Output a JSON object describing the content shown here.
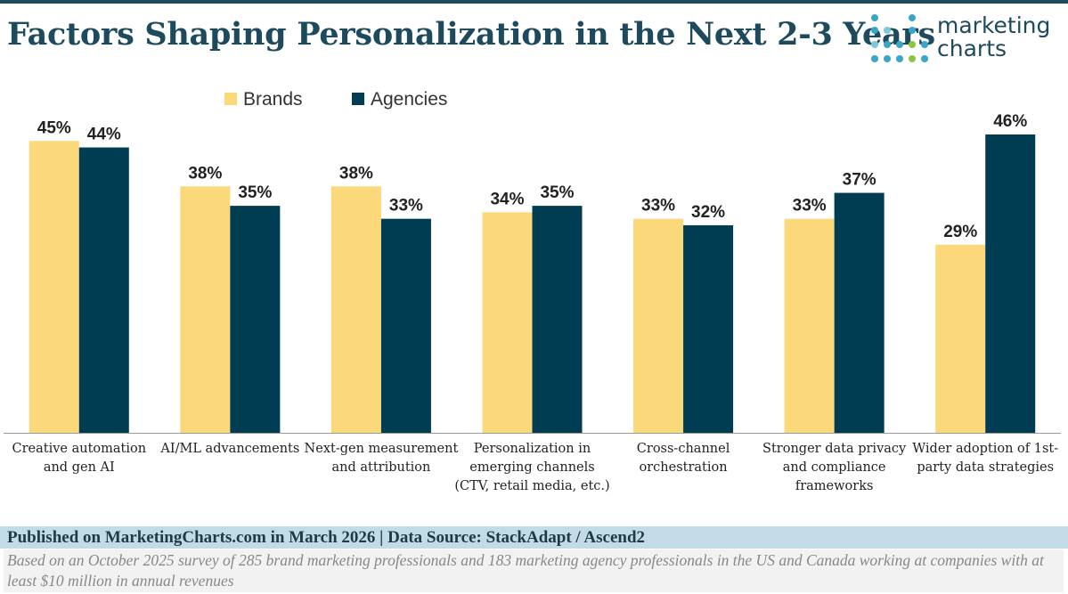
{
  "title": "Factors Shaping Personalization in the Next 2-3 Years",
  "logo": {
    "line1": "marketing",
    "line2": "charts"
  },
  "colors": {
    "brands": "#fbd97b",
    "agencies": "#003c52",
    "title": "#1d4a5c",
    "footer_bar": "#c3dbe6"
  },
  "chart_data": {
    "type": "bar",
    "title": "Factors Shaping Personalization in the Next 2-3 Years",
    "xlabel": "",
    "ylabel": "",
    "ylim": [
      0,
      50
    ],
    "grid": false,
    "legend_position": "top-left",
    "categories": [
      [
        "Creative automation",
        "and gen AI"
      ],
      [
        "AI/ML advancements"
      ],
      [
        "Next-gen measurement",
        "and attribution"
      ],
      [
        "Personalization in",
        "emerging channels",
        "(CTV, retail media, etc.)"
      ],
      [
        "Cross-channel",
        "orchestration"
      ],
      [
        "Stronger data privacy",
        "and compliance",
        "frameworks"
      ],
      [
        "Wider adoption of 1st-",
        "party data strategies"
      ]
    ],
    "series": [
      {
        "name": "Brands",
        "color": "#fbd97b",
        "values": [
          45,
          38,
          38,
          34,
          33,
          33,
          29
        ]
      },
      {
        "name": "Agencies",
        "color": "#003c52",
        "values": [
          44,
          35,
          33,
          35,
          32,
          37,
          46
        ]
      }
    ],
    "value_suffix": "%"
  },
  "footer": {
    "published": "Published on MarketingCharts.com in March 2026 | Data Source: StackAdapt / Ascend2",
    "note": "Based on an October 2025 survey of 285 brand marketing professionals and 183 marketing agency professionals in the US and Canada working at companies with at least $10 million in annual revenues"
  }
}
